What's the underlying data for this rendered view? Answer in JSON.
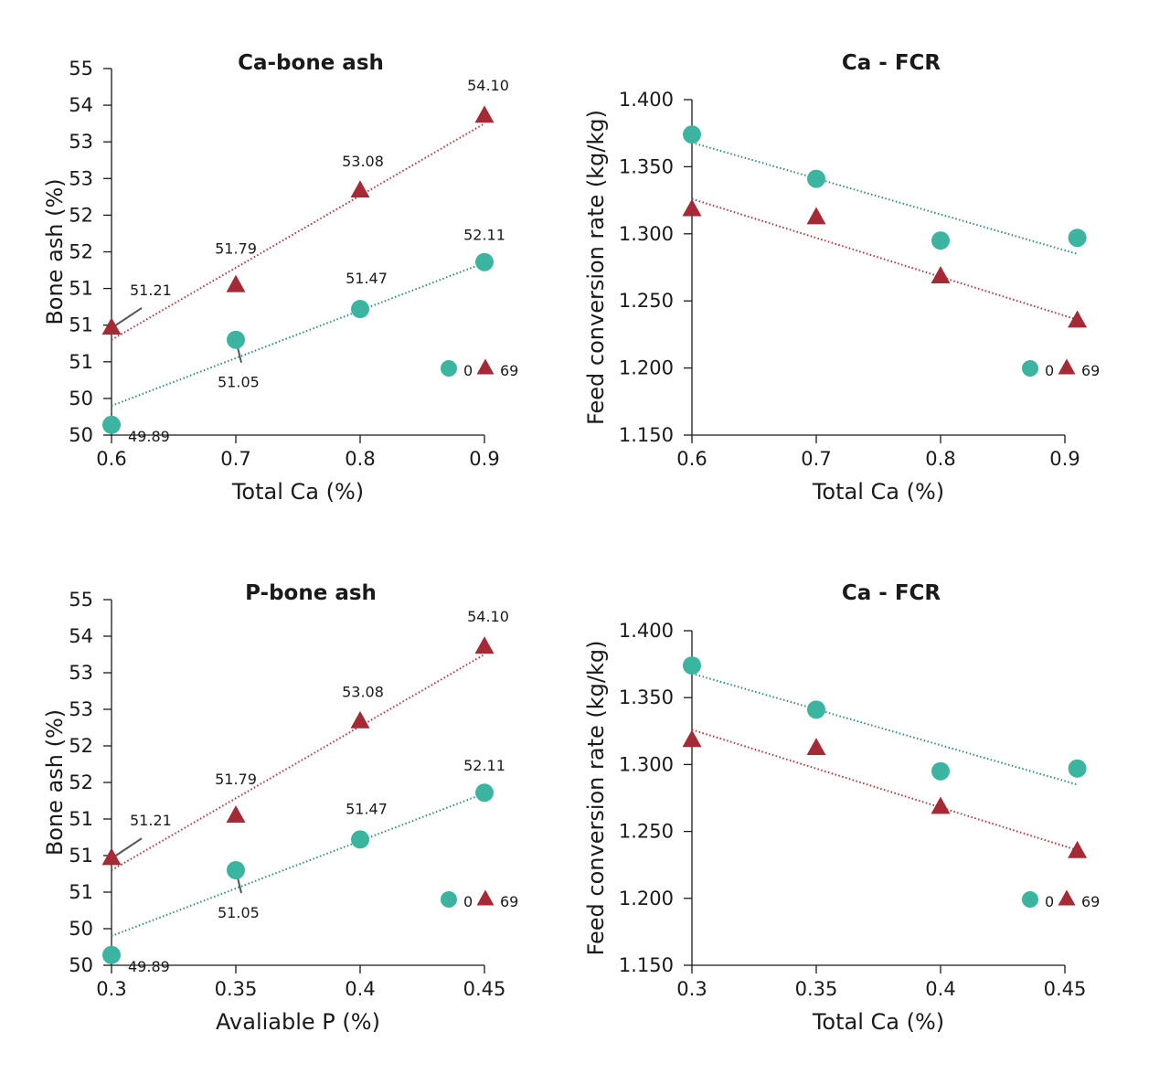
{
  "colors": {
    "series_0": "#3bb5a0",
    "series_69": "#a52a35",
    "trend_0": "#2e8e7a",
    "trend_69": "#b8323e"
  },
  "chart_data": [
    {
      "type": "scatter",
      "title": "Ca-bone ash",
      "xlabel": "Total Ca (%)",
      "ylabel": "Bone ash (%)",
      "xlim": [
        0.6,
        0.9
      ],
      "xticks": [
        0.6,
        0.7,
        0.8,
        0.9
      ],
      "xtick_labels": [
        "0.6",
        "0.7",
        "0.8",
        "0.9"
      ],
      "ylim": [
        49.75,
        54.75
      ],
      "yticks": [
        49.75,
        50.25,
        50.75,
        51.25,
        51.75,
        52.25,
        52.75,
        53.25,
        53.75,
        54.25,
        54.75
      ],
      "ytick_labels": [
        "50",
        "50",
        "51",
        "51",
        "51",
        "52",
        "52",
        "53",
        "53",
        "54",
        "55"
      ],
      "grid": false,
      "legend": "bottom-right",
      "series": [
        {
          "name": "0",
          "marker": "circle",
          "x": [
            0.6,
            0.7,
            0.8,
            0.9
          ],
          "y": [
            49.89,
            51.05,
            51.47,
            52.11
          ],
          "labels": [
            "49.89",
            "51.05",
            "51.47",
            "52.11"
          ],
          "trend": [
            [
              0.6,
              50.15
            ],
            [
              0.9,
              52.1
            ]
          ]
        },
        {
          "name": "69",
          "marker": "triangle",
          "x": [
            0.6,
            0.7,
            0.8,
            0.9
          ],
          "y": [
            51.21,
            51.79,
            53.08,
            54.1
          ],
          "labels": [
            "51.21",
            "51.79",
            "53.08",
            "54.10"
          ],
          "trend": [
            [
              0.6,
              51.05
            ],
            [
              0.9,
              54.0
            ]
          ]
        }
      ]
    },
    {
      "type": "scatter",
      "title": "Ca - FCR",
      "xlabel": "Total Ca (%)",
      "ylabel": "Feed conversion rate (kg/kg)",
      "xlim": [
        0.6,
        0.9
      ],
      "xticks": [
        0.6,
        0.7,
        0.8,
        0.9
      ],
      "xtick_labels": [
        "0.6",
        "0.7",
        "0.8",
        "0.9"
      ],
      "ylim": [
        1.15,
        1.4
      ],
      "yticks": [
        1.15,
        1.2,
        1.25,
        1.3,
        1.35,
        1.4
      ],
      "ytick_labels": [
        "1.150",
        "1.200",
        "1.250",
        "1.300",
        "1.350",
        "1.400"
      ],
      "grid": false,
      "legend": "bottom-right",
      "series": [
        {
          "name": "0",
          "marker": "circle",
          "x": [
            0.6,
            0.7,
            0.8,
            0.91
          ],
          "y": [
            1.374,
            1.341,
            1.295,
            1.297
          ],
          "trend": [
            [
              0.6,
              1.368
            ],
            [
              0.91,
              1.285
            ]
          ]
        },
        {
          "name": "69",
          "marker": "triangle",
          "x": [
            0.6,
            0.7,
            0.8,
            0.91
          ],
          "y": [
            1.318,
            1.312,
            1.268,
            1.235
          ],
          "trend": [
            [
              0.6,
              1.326
            ],
            [
              0.91,
              1.236
            ]
          ]
        }
      ]
    },
    {
      "type": "scatter",
      "title": "P-bone ash",
      "xlabel": "Avaliable P (%)",
      "ylabel": "Bone ash (%)",
      "xlim": [
        0.3,
        0.45
      ],
      "xticks": [
        0.3,
        0.35,
        0.4,
        0.45
      ],
      "xtick_labels": [
        "0.3",
        "0.35",
        "0.4",
        "0.45"
      ],
      "ylim": [
        49.75,
        54.75
      ],
      "yticks": [
        49.75,
        50.25,
        50.75,
        51.25,
        51.75,
        52.25,
        52.75,
        53.25,
        53.75,
        54.25,
        54.75
      ],
      "ytick_labels": [
        "50",
        "50",
        "51",
        "51",
        "51",
        "52",
        "52",
        "53",
        "53",
        "54",
        "55"
      ],
      "grid": false,
      "legend": "bottom-right",
      "series": [
        {
          "name": "0",
          "marker": "circle",
          "x": [
            0.3,
            0.35,
            0.4,
            0.45
          ],
          "y": [
            49.89,
            51.05,
            51.47,
            52.11
          ],
          "labels": [
            "49.89",
            "51.05",
            "51.47",
            "52.11"
          ],
          "trend": [
            [
              0.3,
              50.15
            ],
            [
              0.45,
              52.1
            ]
          ]
        },
        {
          "name": "69",
          "marker": "triangle",
          "x": [
            0.3,
            0.35,
            0.4,
            0.45
          ],
          "y": [
            51.21,
            51.79,
            53.08,
            54.1
          ],
          "labels": [
            "51.21",
            "51.79",
            "53.08",
            "54.10"
          ],
          "trend": [
            [
              0.3,
              51.05
            ],
            [
              0.45,
              54.0
            ]
          ]
        }
      ]
    },
    {
      "type": "scatter",
      "title": "Ca - FCR",
      "xlabel": "Total Ca (%)",
      "ylabel": "Feed conversion rate (kg/kg)",
      "xlim": [
        0.3,
        0.45
      ],
      "xticks": [
        0.3,
        0.35,
        0.4,
        0.45
      ],
      "xtick_labels": [
        "0.3",
        "0.35",
        "0.4",
        "0.45"
      ],
      "ylim": [
        1.15,
        1.4
      ],
      "yticks": [
        1.15,
        1.2,
        1.25,
        1.3,
        1.35,
        1.4
      ],
      "ytick_labels": [
        "1.150",
        "1.200",
        "1.250",
        "1.300",
        "1.350",
        "1.400"
      ],
      "grid": false,
      "legend": "bottom-right",
      "series": [
        {
          "name": "0",
          "marker": "circle",
          "x": [
            0.3,
            0.35,
            0.4,
            0.455
          ],
          "y": [
            1.374,
            1.341,
            1.295,
            1.297
          ],
          "trend": [
            [
              0.3,
              1.368
            ],
            [
              0.455,
              1.285
            ]
          ]
        },
        {
          "name": "69",
          "marker": "triangle",
          "x": [
            0.3,
            0.35,
            0.4,
            0.455
          ],
          "y": [
            1.318,
            1.312,
            1.268,
            1.235
          ],
          "trend": [
            [
              0.3,
              1.326
            ],
            [
              0.455,
              1.236
            ]
          ]
        }
      ]
    }
  ]
}
